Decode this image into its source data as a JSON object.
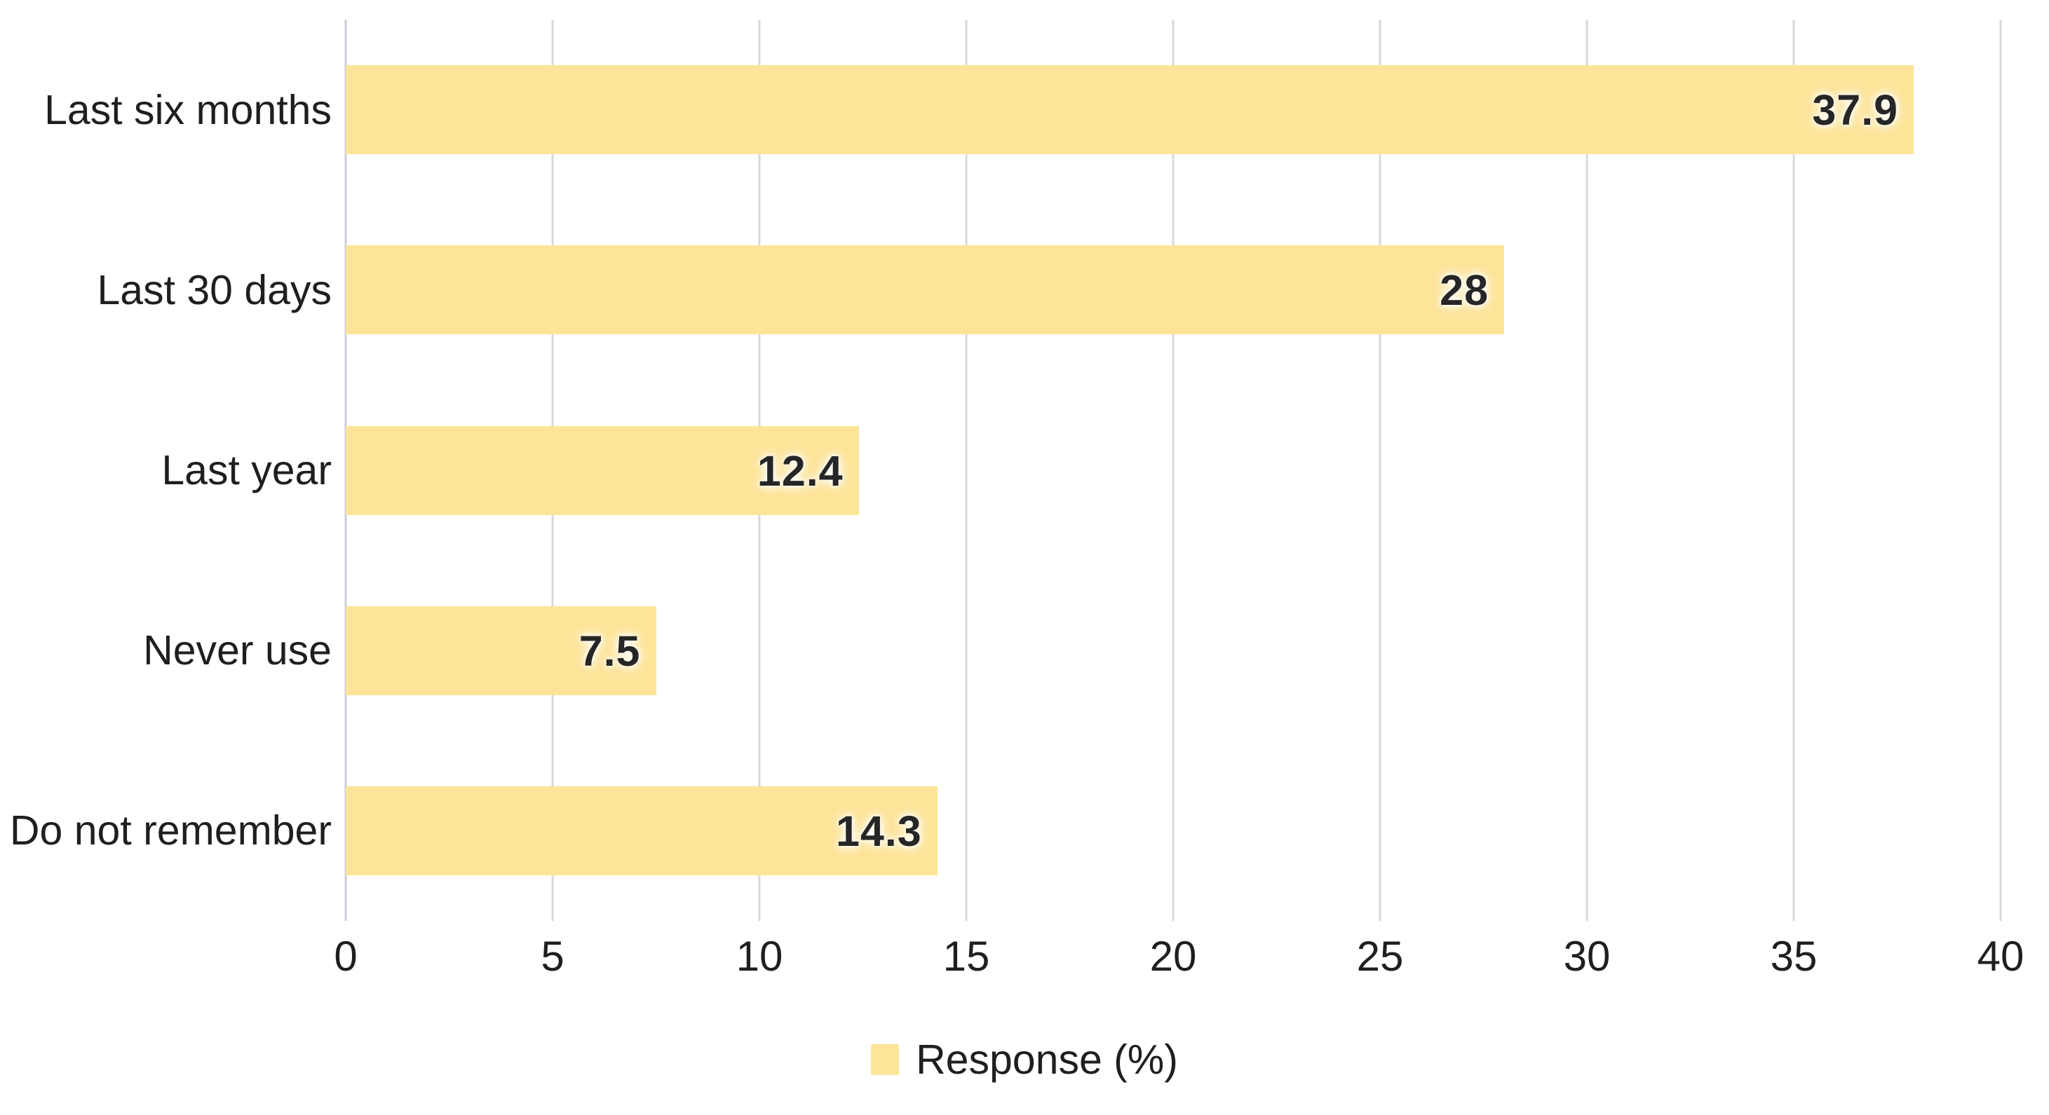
{
  "chart_data": {
    "type": "bar",
    "orientation": "horizontal",
    "categories": [
      "Last six months",
      "Last 30 days",
      "Last year",
      "Never use",
      "Do not remember"
    ],
    "values": [
      37.9,
      28,
      12.4,
      7.5,
      14.3
    ],
    "value_labels": [
      "37.9",
      "28",
      "12.4",
      "7.5",
      "14.3"
    ],
    "series_name": "Response (%)",
    "title": "",
    "xlabel": "",
    "ylabel": "",
    "xlim": [
      0,
      40
    ],
    "x_ticks": [
      0,
      5,
      10,
      15,
      20,
      25,
      30,
      35,
      40
    ],
    "x_tick_labels": [
      "0",
      "5",
      "10",
      "15",
      "20",
      "25",
      "30",
      "35",
      "40"
    ],
    "grid": true,
    "legend_position": "bottom",
    "colors": {
      "bar_fill": "#FDE498",
      "gridline": "#D9D9D9",
      "zero_line": "#C9CED8",
      "label_text": "#262626"
    }
  }
}
